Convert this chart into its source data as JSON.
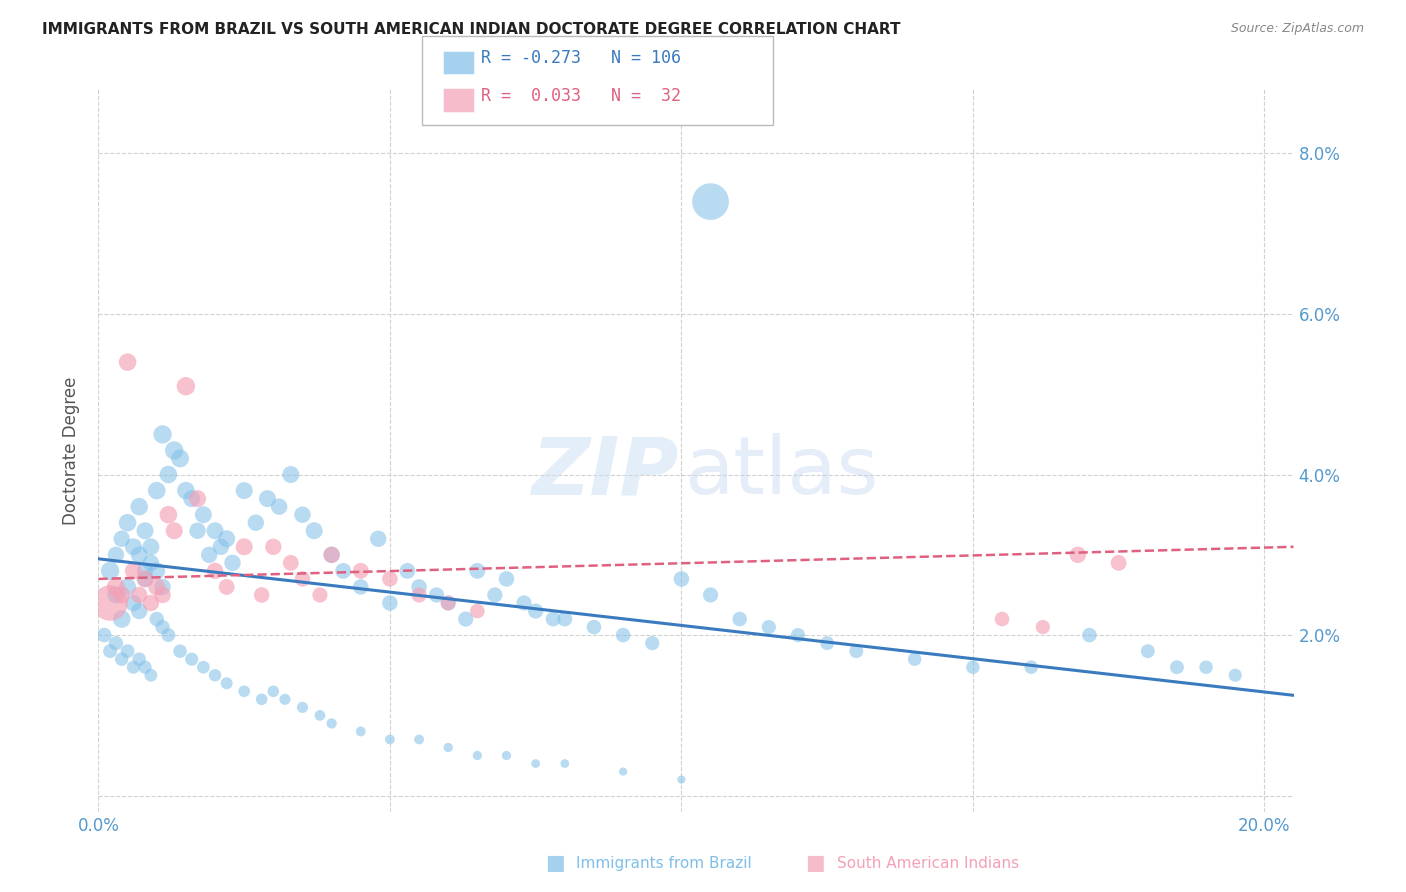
{
  "title": "IMMIGRANTS FROM BRAZIL VS SOUTH AMERICAN INDIAN DOCTORATE DEGREE CORRELATION CHART",
  "source": "Source: ZipAtlas.com",
  "ylabel": "Doctorate Degree",
  "xlim": [
    0.0,
    0.205
  ],
  "ylim": [
    -0.002,
    0.088
  ],
  "xtick_positions": [
    0.0,
    0.05,
    0.1,
    0.15,
    0.2
  ],
  "xtick_labels": [
    "0.0%",
    "",
    "",
    "",
    "20.0%"
  ],
  "ytick_positions": [
    0.0,
    0.02,
    0.04,
    0.06,
    0.08
  ],
  "ytick_labels": [
    "",
    "2.0%",
    "4.0%",
    "6.0%",
    "8.0%"
  ],
  "blue_color": "#7fbee8",
  "pink_color": "#f4a0b5",
  "blue_line_color": "#3a7bbf",
  "pink_line_color": "#e06080",
  "legend_blue_R": "-0.273",
  "legend_blue_N": "106",
  "legend_pink_R": "0.033",
  "legend_pink_N": "32",
  "blue_trend_x": [
    0.0,
    0.205
  ],
  "blue_trend_y": [
    0.0295,
    0.0125
  ],
  "pink_trend_x": [
    0.0,
    0.205
  ],
  "pink_trend_y": [
    0.027,
    0.031
  ],
  "grid_color": "#cccccc",
  "bg_color": "#ffffff",
  "title_color": "#222222",
  "tick_color": "#5599cc",
  "blue_scatter_x": [
    0.002,
    0.003,
    0.003,
    0.004,
    0.004,
    0.005,
    0.005,
    0.006,
    0.006,
    0.007,
    0.007,
    0.007,
    0.008,
    0.008,
    0.008,
    0.009,
    0.009,
    0.01,
    0.01,
    0.011,
    0.011,
    0.012,
    0.013,
    0.014,
    0.015,
    0.016,
    0.017,
    0.018,
    0.019,
    0.02,
    0.021,
    0.022,
    0.023,
    0.025,
    0.027,
    0.029,
    0.031,
    0.033,
    0.035,
    0.037,
    0.04,
    0.042,
    0.045,
    0.048,
    0.05,
    0.053,
    0.055,
    0.058,
    0.06,
    0.063,
    0.065,
    0.068,
    0.07,
    0.073,
    0.075,
    0.078,
    0.08,
    0.085,
    0.09,
    0.095,
    0.1,
    0.105,
    0.11,
    0.115,
    0.12,
    0.125,
    0.13,
    0.14,
    0.15,
    0.16,
    0.17,
    0.18,
    0.19,
    0.195,
    0.001,
    0.002,
    0.003,
    0.004,
    0.005,
    0.006,
    0.007,
    0.008,
    0.009,
    0.01,
    0.011,
    0.012,
    0.014,
    0.016,
    0.018,
    0.02,
    0.022,
    0.025,
    0.028,
    0.03,
    0.032,
    0.035,
    0.038,
    0.04,
    0.045,
    0.05,
    0.055,
    0.06,
    0.065,
    0.07,
    0.075,
    0.08,
    0.09,
    0.1,
    0.105,
    0.185
  ],
  "blue_scatter_y": [
    0.028,
    0.025,
    0.03,
    0.022,
    0.032,
    0.026,
    0.034,
    0.024,
    0.031,
    0.023,
    0.03,
    0.036,
    0.028,
    0.033,
    0.027,
    0.031,
    0.029,
    0.038,
    0.028,
    0.026,
    0.045,
    0.04,
    0.043,
    0.042,
    0.038,
    0.037,
    0.033,
    0.035,
    0.03,
    0.033,
    0.031,
    0.032,
    0.029,
    0.038,
    0.034,
    0.037,
    0.036,
    0.04,
    0.035,
    0.033,
    0.03,
    0.028,
    0.026,
    0.032,
    0.024,
    0.028,
    0.026,
    0.025,
    0.024,
    0.022,
    0.028,
    0.025,
    0.027,
    0.024,
    0.023,
    0.022,
    0.022,
    0.021,
    0.02,
    0.019,
    0.027,
    0.025,
    0.022,
    0.021,
    0.02,
    0.019,
    0.018,
    0.017,
    0.016,
    0.016,
    0.02,
    0.018,
    0.016,
    0.015,
    0.02,
    0.018,
    0.019,
    0.017,
    0.018,
    0.016,
    0.017,
    0.016,
    0.015,
    0.022,
    0.021,
    0.02,
    0.018,
    0.017,
    0.016,
    0.015,
    0.014,
    0.013,
    0.012,
    0.013,
    0.012,
    0.011,
    0.01,
    0.009,
    0.008,
    0.007,
    0.007,
    0.006,
    0.005,
    0.005,
    0.004,
    0.004,
    0.003,
    0.002,
    0.074,
    0.016
  ],
  "blue_scatter_s": [
    35,
    30,
    28,
    32,
    28,
    30,
    32,
    28,
    30,
    28,
    30,
    32,
    28,
    30,
    28,
    30,
    28,
    32,
    30,
    28,
    35,
    32,
    35,
    33,
    32,
    30,
    28,
    30,
    28,
    30,
    28,
    30,
    28,
    30,
    28,
    30,
    28,
    30,
    28,
    30,
    28,
    26,
    25,
    28,
    25,
    26,
    25,
    24,
    24,
    24,
    26,
    24,
    25,
    24,
    24,
    23,
    23,
    22,
    22,
    21,
    25,
    24,
    22,
    21,
    21,
    20,
    20,
    19,
    19,
    19,
    22,
    20,
    19,
    18,
    22,
    20,
    21,
    19,
    20,
    18,
    19,
    18,
    17,
    22,
    21,
    20,
    19,
    18,
    17,
    16,
    15,
    14,
    14,
    14,
    13,
    13,
    12,
    11,
    10,
    10,
    10,
    9,
    9,
    9,
    8,
    8,
    7,
    7,
    140,
    20
  ],
  "pink_scatter_x": [
    0.002,
    0.003,
    0.004,
    0.005,
    0.006,
    0.007,
    0.008,
    0.009,
    0.01,
    0.011,
    0.012,
    0.013,
    0.015,
    0.017,
    0.02,
    0.022,
    0.025,
    0.028,
    0.03,
    0.033,
    0.035,
    0.038,
    0.04,
    0.045,
    0.05,
    0.055,
    0.06,
    0.065,
    0.155,
    0.162,
    0.168,
    0.175
  ],
  "pink_scatter_y": [
    0.024,
    0.026,
    0.025,
    0.054,
    0.028,
    0.025,
    0.027,
    0.024,
    0.026,
    0.025,
    0.035,
    0.033,
    0.051,
    0.037,
    0.028,
    0.026,
    0.031,
    0.025,
    0.031,
    0.029,
    0.027,
    0.025,
    0.03,
    0.028,
    0.027,
    0.025,
    0.024,
    0.023,
    0.022,
    0.021,
    0.03,
    0.029
  ],
  "pink_scatter_s": [
    130,
    35,
    30,
    32,
    30,
    28,
    30,
    28,
    30,
    28,
    32,
    30,
    35,
    30,
    28,
    26,
    30,
    25,
    28,
    26,
    25,
    24,
    28,
    26,
    25,
    24,
    23,
    22,
    22,
    21,
    28,
    26
  ]
}
